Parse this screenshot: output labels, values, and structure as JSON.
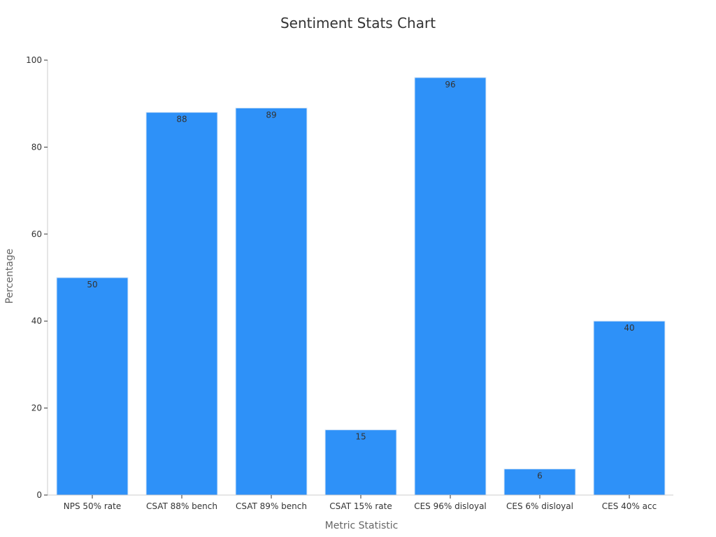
{
  "chart_data": {
    "type": "bar",
    "title": "Sentiment Stats Chart",
    "xlabel": "Metric Statistic",
    "ylabel": "Percentage",
    "categories": [
      "NPS 50% rate",
      "CSAT 88% bench",
      "CSAT 89% bench",
      "CSAT 15% rate",
      "CES 96% disloyal",
      "CES 6% disloyal",
      "CES 40% acc"
    ],
    "values": [
      50,
      88,
      89,
      15,
      96,
      6,
      40
    ],
    "ylim": [
      0,
      100
    ],
    "yticks": [
      0,
      20,
      40,
      60,
      80,
      100
    ],
    "grid": false,
    "data_labels": true,
    "colors": {
      "bar_fill": "#2e91f8",
      "bar_edge": "#d9e8f7"
    }
  }
}
